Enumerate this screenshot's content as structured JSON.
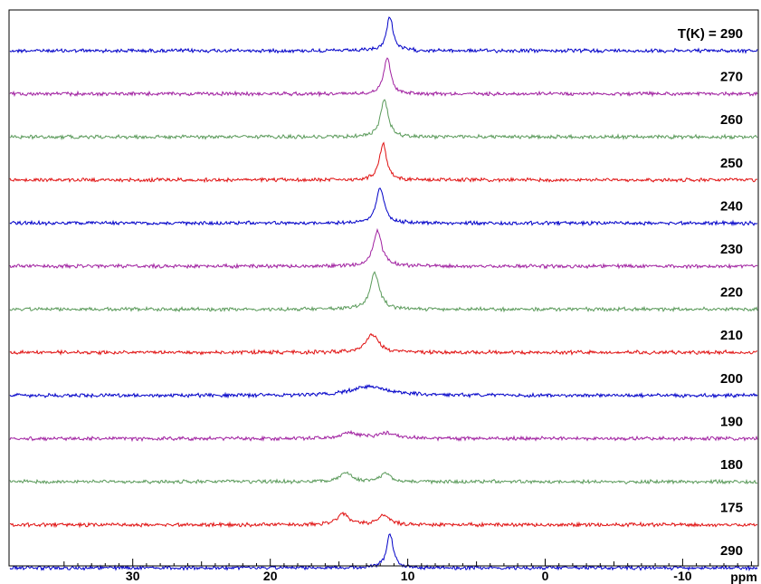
{
  "chart_data": {
    "type": "line",
    "xlabel": "ppm",
    "x_reversed": true,
    "xlim": [
      39,
      -15.5
    ],
    "xticks": [
      30,
      20,
      10,
      0,
      -10
    ],
    "xtick_labels": [
      "30",
      "20",
      "10",
      "0",
      "-10"
    ],
    "grid": false,
    "series": [
      {
        "name": "T(K) = 290",
        "label": "T(K) = 290",
        "color": "#0000c8",
        "peaks": [
          {
            "ppm": 11.3,
            "height": 38,
            "width": 0.28
          }
        ]
      },
      {
        "name": "270",
        "label": "270",
        "color": "#a020a0",
        "peaks": [
          {
            "ppm": 11.5,
            "height": 40,
            "width": 0.3
          }
        ]
      },
      {
        "name": "260",
        "label": "260",
        "color": "#5a9a5a",
        "peaks": [
          {
            "ppm": 11.7,
            "height": 42,
            "width": 0.32
          }
        ]
      },
      {
        "name": "250",
        "label": "250",
        "color": "#e01010",
        "peaks": [
          {
            "ppm": 11.8,
            "height": 40,
            "width": 0.32
          }
        ]
      },
      {
        "name": "240",
        "label": "240",
        "color": "#0000c8",
        "peaks": [
          {
            "ppm": 12.0,
            "height": 40,
            "width": 0.34
          }
        ]
      },
      {
        "name": "230",
        "label": "230",
        "color": "#a020a0",
        "peaks": [
          {
            "ppm": 12.2,
            "height": 40,
            "width": 0.36
          }
        ]
      },
      {
        "name": "220",
        "label": "220",
        "color": "#5a9a5a",
        "peaks": [
          {
            "ppm": 12.4,
            "height": 40,
            "width": 0.4
          }
        ]
      },
      {
        "name": "210",
        "label": "210",
        "color": "#e01010",
        "peaks": [
          {
            "ppm": 12.6,
            "height": 20,
            "width": 0.55
          }
        ]
      },
      {
        "name": "200",
        "label": "200",
        "color": "#0000c8",
        "peaks": [
          {
            "ppm": 12.8,
            "height": 10,
            "width": 1.6
          }
        ]
      },
      {
        "name": "190",
        "label": "190",
        "color": "#a020a0",
        "peaks": [
          {
            "ppm": 14.3,
            "height": 6,
            "width": 0.8
          },
          {
            "ppm": 11.5,
            "height": 6,
            "width": 0.8
          }
        ]
      },
      {
        "name": "180",
        "label": "180",
        "color": "#5a9a5a",
        "peaks": [
          {
            "ppm": 14.5,
            "height": 10,
            "width": 0.45
          },
          {
            "ppm": 11.6,
            "height": 9,
            "width": 0.45
          }
        ]
      },
      {
        "name": "175",
        "label": "175",
        "color": "#e01010",
        "peaks": [
          {
            "ppm": 14.7,
            "height": 12,
            "width": 0.5
          },
          {
            "ppm": 11.7,
            "height": 11,
            "width": 0.45
          }
        ]
      },
      {
        "name": "290",
        "label": "290",
        "color": "#0000c8",
        "peaks": [
          {
            "ppm": 11.3,
            "height": 38,
            "width": 0.28
          }
        ]
      }
    ]
  }
}
